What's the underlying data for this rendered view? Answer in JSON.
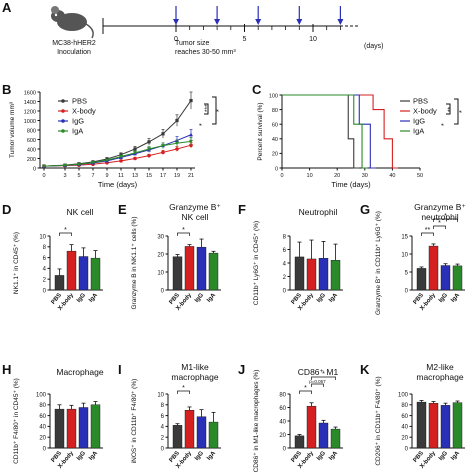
{
  "colors": {
    "PBS": "#3a3a3a",
    "X-body": "#d42020",
    "IgG": "#2a2fb8",
    "IgA": "#2a8a2a",
    "arrow": "#2a2fb8"
  },
  "timeline": {
    "mouse_caption_line1": "MC38-hHER2",
    "mouse_caption_line2": "Inoculation",
    "tumor_caption_line1": "Tumor size",
    "tumor_caption_line2": "reaches 30-50 mm³",
    "ticks": [
      "0",
      "5",
      "10"
    ],
    "unit": "(days)",
    "dosing_days": [
      0,
      3,
      6,
      9,
      12
    ]
  },
  "panels": {
    "A": "A",
    "B": "B",
    "C": "C",
    "D": "D",
    "E": "E",
    "F": "F",
    "G": "G",
    "H": "H",
    "I": "I",
    "J": "J",
    "K": "K"
  },
  "chart_data": [
    {
      "id": "B",
      "type": "line",
      "ylabel": "Tumor volume mm³",
      "xlabel": "Time (days)",
      "x": [
        0,
        3,
        5,
        7,
        9,
        11,
        13,
        15,
        17,
        19,
        21
      ],
      "xticks": [
        "0",
        "3",
        "5",
        "7",
        "9",
        "11",
        "13",
        "15",
        "17",
        "19",
        "21"
      ],
      "yticks": [
        "0",
        "200",
        "400",
        "600",
        "800",
        "1000",
        "1200",
        "1400",
        "1600"
      ],
      "ylim": [
        0,
        1600
      ],
      "series": [
        {
          "name": "PBS",
          "values": [
            40,
            60,
            90,
            130,
            190,
            280,
            400,
            550,
            720,
            1000,
            1420
          ],
          "err": [
            5,
            10,
            15,
            20,
            30,
            40,
            55,
            70,
            90,
            120,
            180
          ]
        },
        {
          "name": "X-body",
          "values": [
            40,
            50,
            60,
            80,
            110,
            150,
            200,
            260,
            330,
            400,
            480
          ],
          "err": [
            5,
            8,
            10,
            12,
            15,
            20,
            25,
            30,
            40,
            50,
            60
          ]
        },
        {
          "name": "IgG",
          "values": [
            40,
            55,
            75,
            105,
            150,
            220,
            300,
            380,
            470,
            580,
            700
          ],
          "err": [
            5,
            9,
            12,
            15,
            20,
            30,
            40,
            50,
            60,
            80,
            110
          ]
        },
        {
          "name": "IgA",
          "values": [
            40,
            55,
            80,
            115,
            165,
            240,
            320,
            400,
            470,
            520,
            560
          ],
          "err": [
            5,
            9,
            12,
            15,
            20,
            30,
            40,
            50,
            60,
            70,
            80
          ]
        }
      ],
      "sig": [
        "***",
        "*",
        "*"
      ]
    },
    {
      "id": "C",
      "type": "line",
      "ylabel": "Percent survival (%)",
      "xlabel": "Time (days)",
      "xticks": [
        "0",
        "10",
        "20",
        "30",
        "40",
        "50"
      ],
      "yticks": [
        "0",
        "20",
        "40",
        "60",
        "80",
        "100"
      ],
      "xlim": [
        0,
        50
      ],
      "ylim": [
        0,
        100
      ],
      "series": [
        {
          "name": "PBS",
          "steps": [
            [
              0,
              100
            ],
            [
              24,
              100
            ],
            [
              24,
              40
            ],
            [
              26,
              40
            ],
            [
              26,
              0
            ],
            [
              28,
              0
            ]
          ]
        },
        {
          "name": "X-body",
          "steps": [
            [
              0,
              100
            ],
            [
              33,
              100
            ],
            [
              33,
              80
            ],
            [
              37,
              80
            ],
            [
              37,
              40
            ],
            [
              40,
              40
            ],
            [
              40,
              0
            ],
            [
              42,
              0
            ]
          ]
        },
        {
          "name": "IgG",
          "steps": [
            [
              0,
              100
            ],
            [
              28,
              100
            ],
            [
              28,
              60
            ],
            [
              32,
              60
            ],
            [
              32,
              0
            ],
            [
              34,
              0
            ]
          ]
        },
        {
          "name": "IgA",
          "steps": [
            [
              0,
              100
            ],
            [
              26,
              100
            ],
            [
              26,
              60
            ],
            [
              29,
              60
            ],
            [
              29,
              0
            ],
            [
              31,
              0
            ]
          ]
        }
      ],
      "sig": [
        "**",
        "*",
        "*"
      ]
    },
    {
      "id": "D",
      "type": "bar",
      "title": "NK cell",
      "ylabel": "NK1.1⁺ in CD45⁺ (%)",
      "categories": [
        "PBS",
        "X-body",
        "IgG",
        "IgA"
      ],
      "values": [
        2.7,
        7.2,
        6.2,
        5.9
      ],
      "err": [
        1.2,
        1.2,
        1.6,
        1.4
      ],
      "ylim": [
        0,
        10
      ],
      "yticks": [
        "0",
        "2",
        "4",
        "6",
        "8",
        "10"
      ],
      "sig": [
        {
          "from": 0,
          "to": 1,
          "text": "*"
        }
      ]
    },
    {
      "id": "E",
      "type": "bar",
      "title": "Granzyme B⁺",
      "subtitle": "NK cell",
      "ylabel": "Granzyme B in NK1.1⁺ cells (%)",
      "categories": [
        "PBS",
        "X-body",
        "IgG",
        "IgA"
      ],
      "values": [
        18.5,
        24.2,
        23.8,
        20.5
      ],
      "err": [
        1.2,
        1.0,
        4.5,
        1.0
      ],
      "ylim": [
        0,
        30
      ],
      "yticks": [
        "0",
        "10",
        "20",
        "30"
      ],
      "sig": [
        {
          "from": 0,
          "to": 1,
          "text": "*"
        }
      ]
    },
    {
      "id": "F",
      "type": "bar",
      "title": "Neutrophil",
      "ylabel": "CD11b⁺ Ly6G⁺ in CD45⁺ (%)",
      "categories": [
        "PBS",
        "X-body",
        "IgG",
        "IgA"
      ],
      "values": [
        4.9,
        4.6,
        4.7,
        4.4
      ],
      "err": [
        2.2,
        2.8,
        2.5,
        2.4
      ],
      "ylim": [
        0,
        8
      ],
      "yticks": [
        "0",
        "2",
        "4",
        "6",
        "8"
      ],
      "sig": []
    },
    {
      "id": "G",
      "type": "bar",
      "title": "Granzyme B⁺",
      "subtitle": "neutrophil",
      "ylabel": "Granzyme B⁺ in CD11b⁺ Ly6G⁺ (%)",
      "categories": [
        "PBS",
        "X-body",
        "IgG",
        "IgA"
      ],
      "values": [
        6.0,
        12.2,
        6.8,
        6.7
      ],
      "err": [
        0.4,
        0.6,
        0.5,
        0.5
      ],
      "ylim": [
        0,
        15
      ],
      "yticks": [
        "0",
        "5",
        "10",
        "15"
      ],
      "sig": [
        {
          "from": 0,
          "to": 1,
          "text": "**"
        },
        {
          "from": 1,
          "to": 2,
          "text": "*"
        },
        {
          "from": 1,
          "to": 3,
          "text": "*"
        }
      ]
    },
    {
      "id": "H",
      "type": "bar",
      "title": "Macrophage",
      "ylabel": "CD11b⁺ F4/80⁺ in CD45⁺ (%)",
      "categories": [
        "PBS",
        "X-body",
        "IgG",
        "IgA"
      ],
      "values": [
        72,
        72,
        75,
        80
      ],
      "err": [
        8,
        7,
        8,
        6
      ],
      "ylim": [
        0,
        100
      ],
      "yticks": [
        "0",
        "20",
        "40",
        "60",
        "80",
        "100"
      ],
      "sig": []
    },
    {
      "id": "I",
      "type": "bar",
      "title": "M1-like",
      "subtitle": "macrophage",
      "ylabel": "iNOS⁺ in CD11b⁺ F4/80⁺ (%)",
      "categories": [
        "PBS",
        "X-body",
        "IgG",
        "IgA"
      ],
      "values": [
        4.2,
        7.0,
        5.8,
        4.8
      ],
      "err": [
        0.3,
        0.6,
        1.3,
        1.8
      ],
      "ylim": [
        0,
        10
      ],
      "yticks": [
        "0",
        "2",
        "4",
        "6",
        "8",
        "10"
      ],
      "sig": [
        {
          "from": 0,
          "to": 1,
          "text": "*"
        }
      ]
    },
    {
      "id": "J",
      "type": "bar",
      "title": "CD86⁺ M1",
      "ylabel": "CD86⁺ in M1-like macrophages (%)",
      "categories": [
        "PBS",
        "X-body",
        "IgG",
        "IgA"
      ],
      "values": [
        18,
        62,
        37,
        28
      ],
      "err": [
        2,
        5,
        4,
        3
      ],
      "ylim": [
        0,
        80
      ],
      "yticks": [
        "0",
        "20",
        "40",
        "60",
        "80"
      ],
      "sig": [
        {
          "from": 0,
          "to": 1,
          "text": "*"
        },
        {
          "from": 1,
          "to": 2,
          "text": "p=0.057"
        },
        {
          "from": 1,
          "to": 3,
          "text": "*"
        }
      ]
    },
    {
      "id": "K",
      "type": "bar",
      "title": "M2-like",
      "subtitle": "macrophage",
      "ylabel": "CD206⁺ in CD11b⁺ F4/80⁺ (%)",
      "categories": [
        "PBS",
        "X-body",
        "IgG",
        "IgA"
      ],
      "values": [
        85,
        83,
        79,
        84
      ],
      "err": [
        3,
        3,
        4,
        3
      ],
      "ylim": [
        0,
        100
      ],
      "yticks": [
        "0",
        "20",
        "40",
        "60",
        "80",
        "100"
      ],
      "sig": []
    }
  ]
}
